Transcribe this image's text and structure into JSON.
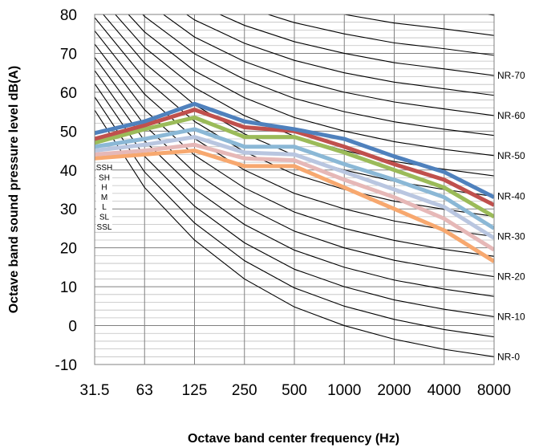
{
  "chart_data": {
    "type": "line",
    "title": "",
    "xlabel": "Octave band center frequency (Hz)",
    "ylabel": "Octave band sound pressure level dB(A)",
    "categories": [
      "31.5",
      "63",
      "125",
      "250",
      "500",
      "1000",
      "2000",
      "4000",
      "8000"
    ],
    "ylim": [
      -10,
      80
    ],
    "yticks": [
      "80",
      "70",
      "60",
      "50",
      "40",
      "30",
      "20",
      "10",
      "0",
      "-10"
    ],
    "grid": true,
    "minor_grid_y_step": 2,
    "series": [
      {
        "name": "SSH",
        "color": "#4f81bd",
        "values": [
          49.5,
          52.5,
          57,
          52.5,
          50.5,
          48,
          43.5,
          39.5,
          33
        ]
      },
      {
        "name": "SH",
        "color": "#c0504d",
        "values": [
          48,
          51.5,
          55.5,
          51,
          50,
          46,
          41.5,
          37.5,
          31
        ]
      },
      {
        "name": "H",
        "color": "#9bbb59",
        "values": [
          47,
          50.5,
          53.5,
          48.5,
          48.5,
          44.5,
          40,
          35.5,
          28
        ]
      },
      {
        "name": "M",
        "color": "#8bb8d6",
        "values": [
          46,
          48,
          50.5,
          46,
          46,
          41.5,
          37.5,
          33,
          25
        ]
      },
      {
        "name": "L",
        "color": "#b9c6e0",
        "values": [
          45,
          46.5,
          48.5,
          44.5,
          44,
          39.5,
          35,
          30.5,
          22.5
        ]
      },
      {
        "name": "SL",
        "color": "#e6b8b7",
        "values": [
          44,
          45,
          46.5,
          43,
          42.5,
          37.5,
          33,
          27.5,
          19.5
        ]
      },
      {
        "name": "SSL",
        "color": "#f7a86f",
        "values": [
          43,
          44,
          45,
          41,
          41,
          35.5,
          30,
          24.5,
          16.5
        ]
      }
    ],
    "mode_labels": [
      "SSH",
      "SH",
      "H",
      "M",
      "L",
      "SL",
      "SSL"
    ],
    "nr_curves": [
      {
        "label": "NR-0",
        "values": [
          55.4,
          35.5,
          22.0,
          12.0,
          4.8,
          0,
          -3.5,
          -6.1,
          -8.0
        ]
      },
      {
        "label": "NR-10",
        "values": [
          62.2,
          43.5,
          30.7,
          21.3,
          14.5,
          10,
          6.6,
          4.2,
          2.3
        ]
      },
      {
        "label": "NR-20",
        "values": [
          69.0,
          51.5,
          39.4,
          30.7,
          24.3,
          20,
          16.8,
          14.5,
          12.6
        ]
      },
      {
        "label": "NR-30",
        "values": [
          75.8,
          59.5,
          48.1,
          40.0,
          34.0,
          30,
          26.9,
          24.7,
          22.9
        ]
      },
      {
        "label": "NR-40",
        "values": [
          82.6,
          67.5,
          56.8,
          49.3,
          43.8,
          40,
          37.1,
          35.0,
          33.2
        ]
      },
      {
        "label": "NR-50",
        "values": [
          89.4,
          75.5,
          65.5,
          58.6,
          53.5,
          50,
          47.3,
          45.3,
          43.7
        ]
      },
      {
        "label": "NR-60",
        "values": [
          96.3,
          83.5,
          74.2,
          67.9,
          63.3,
          60,
          57.5,
          55.7,
          54.0
        ]
      },
      {
        "label": "NR-70",
        "values": [
          103.2,
          91.5,
          82.9,
          77.2,
          73.0,
          70,
          67.6,
          66.0,
          64.3
        ]
      },
      {
        "label": "",
        "values": [
          110.0,
          99.5,
          91.6,
          86.5,
          82.8,
          80,
          77.8,
          76.3,
          74.6
        ]
      },
      {
        "label": "",
        "values": [
          116.9,
          107.5,
          100.3,
          95.8,
          92.5,
          90,
          88.0,
          86.6,
          84.9
        ]
      },
      {
        "label": "",
        "values": [
          123.7,
          115.5,
          109.0,
          105.1,
          102.3,
          100,
          98.2,
          96.9,
          95.2
        ]
      },
      {
        "label": "",
        "values": [
          130.5,
          123.5,
          117.7,
          114.4,
          112.0,
          110,
          108.4,
          107.2,
          105.5
        ]
      }
    ],
    "nr_between_curves": [
      {
        "values": [
          58.8,
          39.5,
          26.4,
          16.7,
          9.7,
          5,
          1.6,
          -1.0,
          -2.9
        ]
      },
      {
        "values": [
          65.6,
          47.5,
          35.1,
          26.0,
          19.4,
          15,
          11.7,
          9.4,
          7.5
        ]
      },
      {
        "values": [
          72.4,
          55.5,
          43.8,
          35.4,
          29.2,
          25,
          21.9,
          19.6,
          17.8
        ]
      },
      {
        "values": [
          79.2,
          63.5,
          52.5,
          44.7,
          38.9,
          35,
          32.0,
          29.9,
          28.1
        ]
      },
      {
        "values": [
          86.0,
          71.5,
          61.2,
          54.0,
          48.7,
          45,
          42.2,
          40.2,
          38.5
        ]
      },
      {
        "values": [
          92.9,
          79.5,
          69.9,
          63.3,
          58.4,
          55,
          52.4,
          50.5,
          48.9
        ]
      },
      {
        "values": [
          99.8,
          87.5,
          78.6,
          72.6,
          68.2,
          65,
          62.6,
          60.9,
          59.2
        ]
      },
      {
        "values": [
          106.6,
          95.5,
          87.3,
          81.9,
          77.9,
          75,
          72.7,
          71.2,
          69.5
        ]
      },
      {
        "values": [
          113.4,
          103.5,
          96.0,
          91.2,
          87.7,
          85,
          82.9,
          81.5,
          79.8
        ]
      },
      {
        "values": [
          120.3,
          111.5,
          104.7,
          100.5,
          97.4,
          95,
          93.1,
          91.8,
          90.1
        ]
      }
    ]
  }
}
